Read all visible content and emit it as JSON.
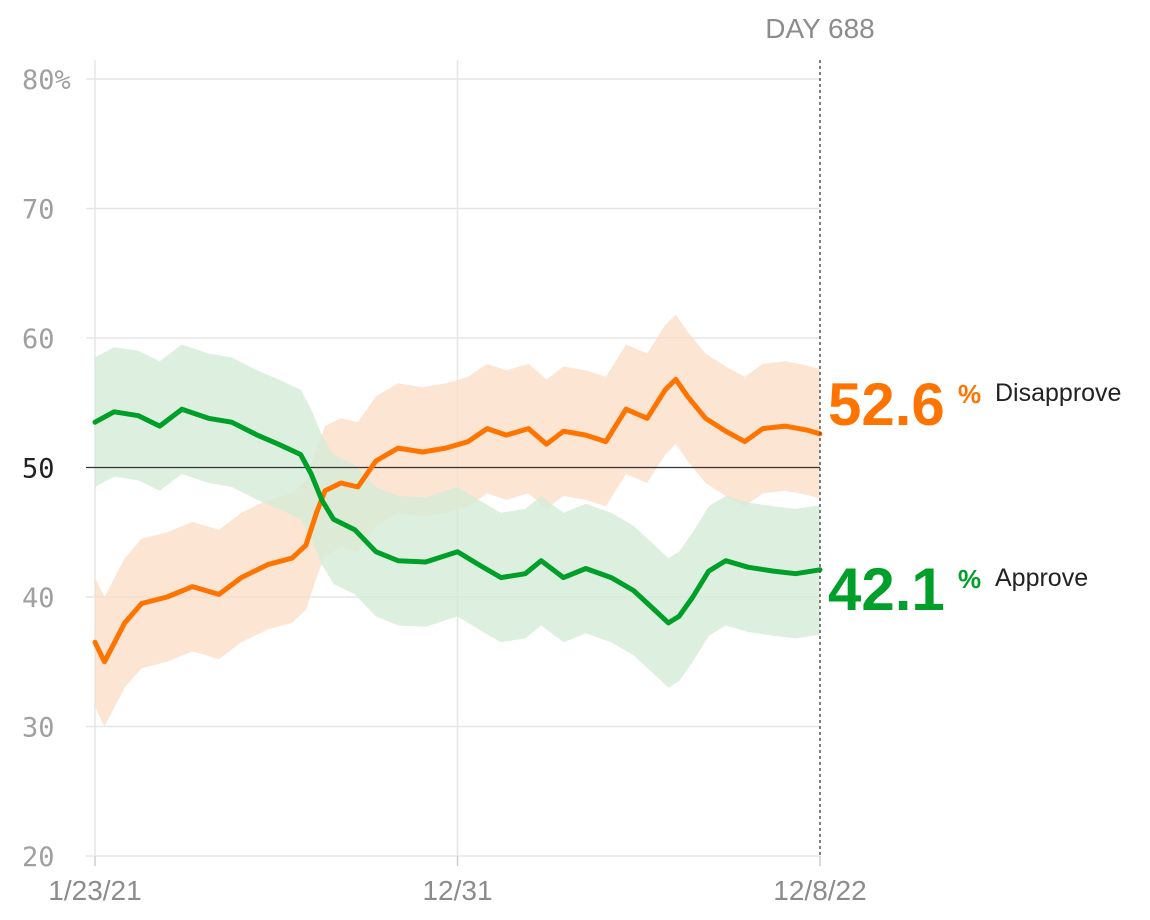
{
  "chart_data": {
    "type": "line",
    "title": "",
    "xlabel": "",
    "ylabel": "",
    "ylim": [
      20,
      80
    ],
    "y_unit": "%",
    "y_ticks": [
      20,
      30,
      40,
      50,
      60,
      70,
      80
    ],
    "y_tick_labels": [
      "20",
      "30",
      "40",
      "50",
      "60",
      "70",
      "80%"
    ],
    "emphasized_y": 50,
    "x_start": "2021-01-23",
    "x_end": "2022-12-08",
    "x_ticks": [
      {
        "date": "2021-01-23",
        "label": "1/23/21"
      },
      {
        "date": "2021-12-31",
        "label": "12/31"
      },
      {
        "date": "2022-12-08",
        "label": "12/8/22"
      }
    ],
    "current_marker": {
      "date": "2022-12-08",
      "label": "DAY 688"
    },
    "grid": true,
    "series": [
      {
        "name": "Disapprove",
        "color": "#ff7400",
        "band_color": "#fcdcc5",
        "current_value": "52.6",
        "value_suffix": "%",
        "points": [
          {
            "x": "2021-01-23",
            "y": 36.5,
            "lo": 31.5,
            "hi": 41.5
          },
          {
            "x": "2021-02-01",
            "y": 35.0,
            "lo": 30.0,
            "hi": 40.0
          },
          {
            "x": "2021-02-20",
            "y": 38.0,
            "lo": 33.0,
            "hi": 43.0
          },
          {
            "x": "2021-03-08",
            "y": 39.5,
            "lo": 34.5,
            "hi": 44.5
          },
          {
            "x": "2021-04-01",
            "y": 40.0,
            "lo": 35.0,
            "hi": 45.0
          },
          {
            "x": "2021-04-25",
            "y": 40.8,
            "lo": 35.8,
            "hi": 45.8
          },
          {
            "x": "2021-05-20",
            "y": 40.2,
            "lo": 35.2,
            "hi": 45.2
          },
          {
            "x": "2021-06-10",
            "y": 41.5,
            "lo": 36.5,
            "hi": 46.5
          },
          {
            "x": "2021-07-05",
            "y": 42.5,
            "lo": 37.5,
            "hi": 47.5
          },
          {
            "x": "2021-07-28",
            "y": 43.0,
            "lo": 38.0,
            "hi": 48.0
          },
          {
            "x": "2021-08-10",
            "y": 44.0,
            "lo": 39.0,
            "hi": 49.0
          },
          {
            "x": "2021-08-20",
            "y": 46.5,
            "lo": 41.5,
            "hi": 51.5
          },
          {
            "x": "2021-08-28",
            "y": 48.2,
            "lo": 43.2,
            "hi": 53.2
          },
          {
            "x": "2021-09-12",
            "y": 48.8,
            "lo": 43.8,
            "hi": 53.8
          },
          {
            "x": "2021-09-28",
            "y": 48.5,
            "lo": 43.5,
            "hi": 53.5
          },
          {
            "x": "2021-10-15",
            "y": 50.5,
            "lo": 45.5,
            "hi": 55.5
          },
          {
            "x": "2021-11-05",
            "y": 51.5,
            "lo": 46.5,
            "hi": 56.5
          },
          {
            "x": "2021-11-28",
            "y": 51.2,
            "lo": 46.2,
            "hi": 56.2
          },
          {
            "x": "2021-12-20",
            "y": 51.5,
            "lo": 46.5,
            "hi": 56.5
          },
          {
            "x": "2022-01-10",
            "y": 52.0,
            "lo": 47.0,
            "hi": 57.0
          },
          {
            "x": "2022-01-28",
            "y": 53.0,
            "lo": 48.0,
            "hi": 58.0
          },
          {
            "x": "2022-02-15",
            "y": 52.5,
            "lo": 47.5,
            "hi": 57.5
          },
          {
            "x": "2022-03-08",
            "y": 53.0,
            "lo": 48.0,
            "hi": 58.0
          },
          {
            "x": "2022-03-25",
            "y": 51.8,
            "lo": 46.8,
            "hi": 56.8
          },
          {
            "x": "2022-04-10",
            "y": 52.8,
            "lo": 47.8,
            "hi": 57.8
          },
          {
            "x": "2022-05-01",
            "y": 52.5,
            "lo": 47.5,
            "hi": 57.5
          },
          {
            "x": "2022-05-20",
            "y": 52.0,
            "lo": 47.0,
            "hi": 57.0
          },
          {
            "x": "2022-06-08",
            "y": 54.5,
            "lo": 49.5,
            "hi": 59.5
          },
          {
            "x": "2022-06-28",
            "y": 53.8,
            "lo": 48.8,
            "hi": 58.8
          },
          {
            "x": "2022-07-15",
            "y": 56.0,
            "lo": 51.0,
            "hi": 61.0
          },
          {
            "x": "2022-07-25",
            "y": 56.8,
            "lo": 51.8,
            "hi": 61.8
          },
          {
            "x": "2022-08-05",
            "y": 55.5,
            "lo": 50.5,
            "hi": 60.5
          },
          {
            "x": "2022-08-22",
            "y": 53.8,
            "lo": 48.8,
            "hi": 58.8
          },
          {
            "x": "2022-09-10",
            "y": 52.8,
            "lo": 47.8,
            "hi": 57.8
          },
          {
            "x": "2022-09-28",
            "y": 52.0,
            "lo": 47.0,
            "hi": 57.0
          },
          {
            "x": "2022-10-15",
            "y": 53.0,
            "lo": 48.0,
            "hi": 58.0
          },
          {
            "x": "2022-11-05",
            "y": 53.2,
            "lo": 48.2,
            "hi": 58.2
          },
          {
            "x": "2022-11-25",
            "y": 52.9,
            "lo": 47.9,
            "hi": 57.9
          },
          {
            "x": "2022-12-08",
            "y": 52.6,
            "lo": 47.6,
            "hi": 57.6
          }
        ]
      },
      {
        "name": "Approve",
        "color": "#009f29",
        "band_color": "#d2ebd6",
        "current_value": "42.1",
        "value_suffix": "%",
        "points": [
          {
            "x": "2021-01-23",
            "y": 53.5,
            "lo": 48.5,
            "hi": 58.5
          },
          {
            "x": "2021-02-10",
            "y": 54.3,
            "lo": 49.3,
            "hi": 59.3
          },
          {
            "x": "2021-03-05",
            "y": 54.0,
            "lo": 49.0,
            "hi": 59.0
          },
          {
            "x": "2021-03-25",
            "y": 53.2,
            "lo": 48.2,
            "hi": 58.2
          },
          {
            "x": "2021-04-15",
            "y": 54.5,
            "lo": 49.5,
            "hi": 59.5
          },
          {
            "x": "2021-05-10",
            "y": 53.8,
            "lo": 48.8,
            "hi": 58.8
          },
          {
            "x": "2021-06-01",
            "y": 53.5,
            "lo": 48.5,
            "hi": 58.5
          },
          {
            "x": "2021-06-25",
            "y": 52.5,
            "lo": 47.5,
            "hi": 57.5
          },
          {
            "x": "2021-07-15",
            "y": 51.8,
            "lo": 46.8,
            "hi": 56.8
          },
          {
            "x": "2021-08-05",
            "y": 51.0,
            "lo": 46.0,
            "hi": 56.0
          },
          {
            "x": "2021-08-15",
            "y": 49.5,
            "lo": 44.5,
            "hi": 54.5
          },
          {
            "x": "2021-08-25",
            "y": 47.5,
            "lo": 42.5,
            "hi": 52.5
          },
          {
            "x": "2021-09-05",
            "y": 46.0,
            "lo": 41.0,
            "hi": 51.0
          },
          {
            "x": "2021-09-25",
            "y": 45.2,
            "lo": 40.2,
            "hi": 50.2
          },
          {
            "x": "2021-10-15",
            "y": 43.5,
            "lo": 38.5,
            "hi": 48.5
          },
          {
            "x": "2021-11-05",
            "y": 42.8,
            "lo": 37.8,
            "hi": 47.8
          },
          {
            "x": "2021-12-01",
            "y": 42.7,
            "lo": 37.7,
            "hi": 47.7
          },
          {
            "x": "2021-12-31",
            "y": 43.5,
            "lo": 38.5,
            "hi": 48.5
          },
          {
            "x": "2022-01-20",
            "y": 42.5,
            "lo": 37.5,
            "hi": 47.5
          },
          {
            "x": "2022-02-10",
            "y": 41.5,
            "lo": 36.5,
            "hi": 46.5
          },
          {
            "x": "2022-03-05",
            "y": 41.8,
            "lo": 36.8,
            "hi": 46.8
          },
          {
            "x": "2022-03-20",
            "y": 42.8,
            "lo": 37.8,
            "hi": 47.8
          },
          {
            "x": "2022-04-10",
            "y": 41.5,
            "lo": 36.5,
            "hi": 46.5
          },
          {
            "x": "2022-05-01",
            "y": 42.2,
            "lo": 37.2,
            "hi": 47.2
          },
          {
            "x": "2022-05-25",
            "y": 41.5,
            "lo": 36.5,
            "hi": 46.5
          },
          {
            "x": "2022-06-15",
            "y": 40.5,
            "lo": 35.5,
            "hi": 45.5
          },
          {
            "x": "2022-07-05",
            "y": 39.0,
            "lo": 34.0,
            "hi": 44.0
          },
          {
            "x": "2022-07-18",
            "y": 38.0,
            "lo": 33.0,
            "hi": 43.0
          },
          {
            "x": "2022-07-28",
            "y": 38.5,
            "lo": 33.5,
            "hi": 43.5
          },
          {
            "x": "2022-08-10",
            "y": 40.0,
            "lo": 35.0,
            "hi": 45.0
          },
          {
            "x": "2022-08-25",
            "y": 42.0,
            "lo": 37.0,
            "hi": 47.0
          },
          {
            "x": "2022-09-10",
            "y": 42.8,
            "lo": 37.8,
            "hi": 47.8
          },
          {
            "x": "2022-10-01",
            "y": 42.3,
            "lo": 37.3,
            "hi": 47.3
          },
          {
            "x": "2022-10-25",
            "y": 42.0,
            "lo": 37.0,
            "hi": 47.0
          },
          {
            "x": "2022-11-15",
            "y": 41.8,
            "lo": 36.8,
            "hi": 46.8
          },
          {
            "x": "2022-12-08",
            "y": 42.1,
            "lo": 37.1,
            "hi": 47.1
          }
        ]
      }
    ]
  }
}
